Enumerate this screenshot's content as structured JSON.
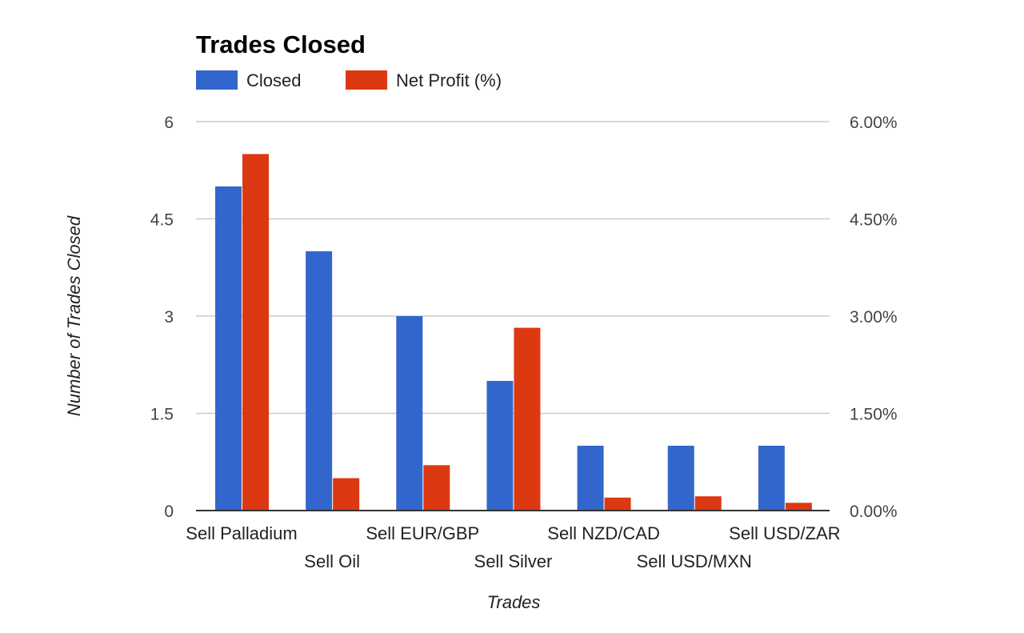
{
  "chart_data": {
    "type": "bar",
    "title": "Trades Closed",
    "xlabel": "Trades",
    "ylabel": "Number of Trades Closed",
    "categories": [
      "Sell Palladium",
      "Sell Oil",
      "Sell EUR/GBP",
      "Sell Silver",
      "Sell NZD/CAD",
      "Sell USD/MXN",
      "Sell USD/ZAR"
    ],
    "series": [
      {
        "name": "Closed",
        "axis": "left",
        "color": "#3366cc",
        "values": [
          5,
          4,
          3,
          2,
          1,
          1,
          1
        ]
      },
      {
        "name": "Net Profit (%)",
        "axis": "right",
        "color": "#dc3912",
        "values": [
          5.5,
          0.5,
          0.7,
          2.82,
          0.2,
          0.22,
          0.12
        ]
      }
    ],
    "ylim": [
      0,
      6
    ],
    "y_ticks": [
      "0",
      "1.5",
      "3",
      "4.5",
      "6"
    ],
    "y2lim": [
      0,
      6
    ],
    "y2_ticks": [
      "0.00%",
      "1.50%",
      "3.00%",
      "4.50%",
      "6.00%"
    ],
    "legend_position": "top-left",
    "grid": true
  }
}
